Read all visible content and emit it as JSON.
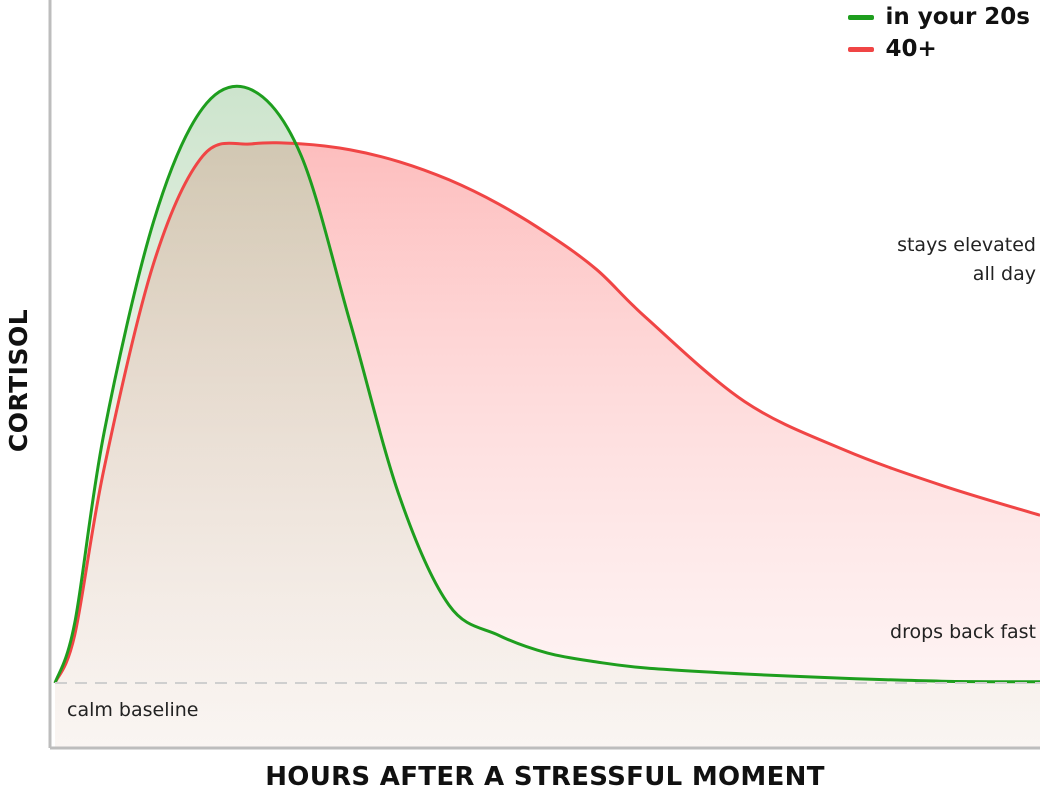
{
  "chart_data": {
    "type": "area",
    "xlabel": "HOURS AFTER A STRESSFUL MOMENT",
    "ylabel": "CORTISOL",
    "ylim": [
      0,
      100
    ],
    "grid": false,
    "legend_position": "top-right",
    "baseline": {
      "label": "calm baseline",
      "value": 0
    },
    "annotations": [
      {
        "text_line1": "stays elevated",
        "text_line2": "all day",
        "series": "40+"
      },
      {
        "text": "drops back fast",
        "series": "in your 20s"
      }
    ],
    "x": [
      0,
      0.02,
      0.05,
      0.1,
      0.15,
      0.2,
      0.25,
      0.3,
      0.35,
      0.4,
      0.45,
      0.5,
      0.55,
      0.6,
      0.7,
      0.8,
      0.9,
      1.0
    ],
    "series": [
      {
        "name": "in your 20s",
        "color": "#1e9e1e",
        "values": [
          0,
          10,
          42,
          77,
          96,
          99,
          88,
          60,
          31,
          13,
          8,
          5,
          3.5,
          2.5,
          1.5,
          0.8,
          0.3,
          0.2
        ]
      },
      {
        "name": "40+",
        "color": "#f04545",
        "values": [
          0,
          8,
          36,
          70,
          88,
          90,
          90,
          89,
          87,
          84,
          80,
          75,
          69,
          61,
          47,
          39,
          33,
          28
        ]
      }
    ]
  }
}
